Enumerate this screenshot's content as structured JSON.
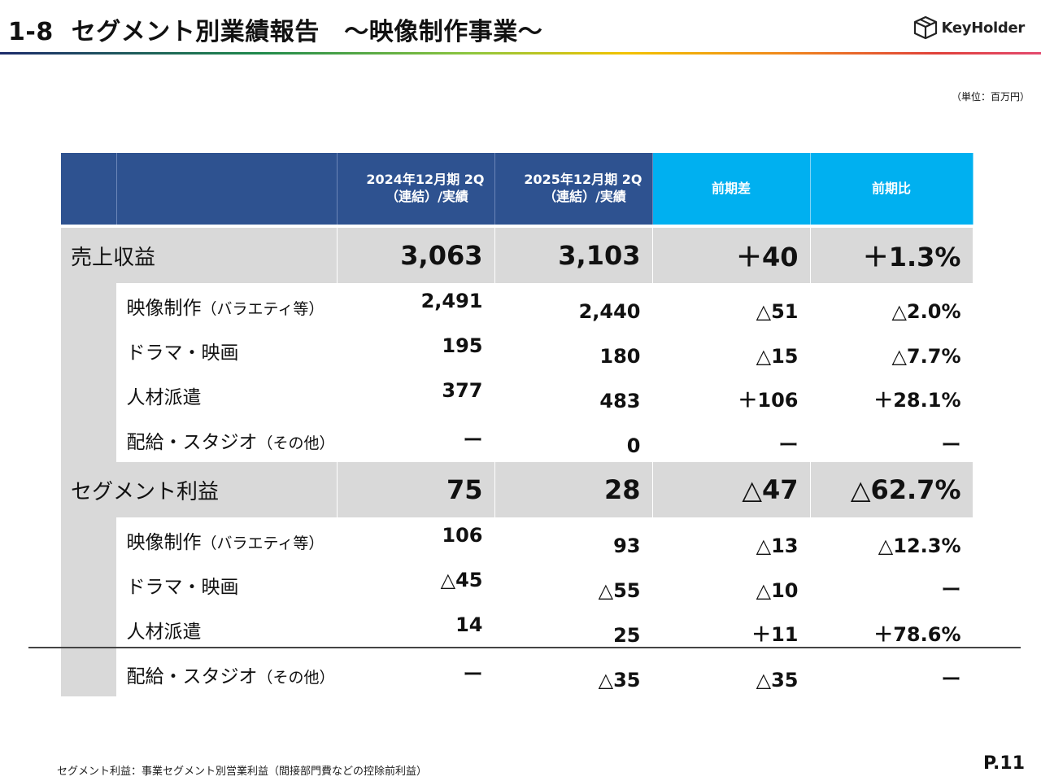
{
  "header": {
    "section_number": "1-8",
    "title": "セグメント別業績報告　～映像制作事業～",
    "logo_text": "KeyHolder"
  },
  "unit_note": "（単位：百万円）",
  "table": {
    "columns": [
      {
        "line1": "2024年12月期 2Q",
        "line2": "（連結）/実績"
      },
      {
        "line1": "2025年12月期 2Q",
        "line2": "（連結）/実績"
      },
      {
        "line1": "前期差"
      },
      {
        "line1": "前期比"
      }
    ],
    "revenue": {
      "label": "売上収益",
      "values": [
        "3,063",
        "3,103",
        "＋40",
        "＋1.3%"
      ],
      "rows": [
        {
          "label": "映像制作",
          "note": "（バラエティ等）",
          "values": [
            "2,491",
            "2,440",
            "△51",
            "△2.0%"
          ]
        },
        {
          "label": "ドラマ・映画",
          "note": "",
          "values": [
            "195",
            "180",
            "△15",
            "△7.7%"
          ]
        },
        {
          "label": "人材派遣",
          "note": "",
          "values": [
            "377",
            "483",
            "＋106",
            "＋28.1%"
          ]
        },
        {
          "label": "配給・スタジオ",
          "note": "（その他）",
          "values": [
            "ー",
            "0",
            "ー",
            "ー"
          ]
        }
      ]
    },
    "profit": {
      "label": "セグメント利益",
      "values": [
        "75",
        "28",
        "△47",
        "△62.7%"
      ],
      "rows": [
        {
          "label": "映像制作",
          "note": "（バラエティ等）",
          "values": [
            "106",
            "93",
            "△13",
            "△12.3%"
          ]
        },
        {
          "label": "ドラマ・映画",
          "note": "",
          "values": [
            "△45",
            "△55",
            "△10",
            "ー"
          ]
        },
        {
          "label": "人材派遣",
          "note": "",
          "values": [
            "14",
            "25",
            "＋11",
            "＋78.6%"
          ]
        },
        {
          "label": "配給・スタジオ",
          "note": "（その他）",
          "values": [
            "ー",
            "△35",
            "△35",
            "ー"
          ]
        }
      ]
    }
  },
  "footnote": "セグメント利益：事業セグメント別営業利益（間接部門費などの控除前利益）",
  "page_number": "P.11",
  "colors": {
    "header_dark": "#2e5290",
    "header_light": "#00b0f0",
    "band_gray": "#d9d9d9"
  }
}
